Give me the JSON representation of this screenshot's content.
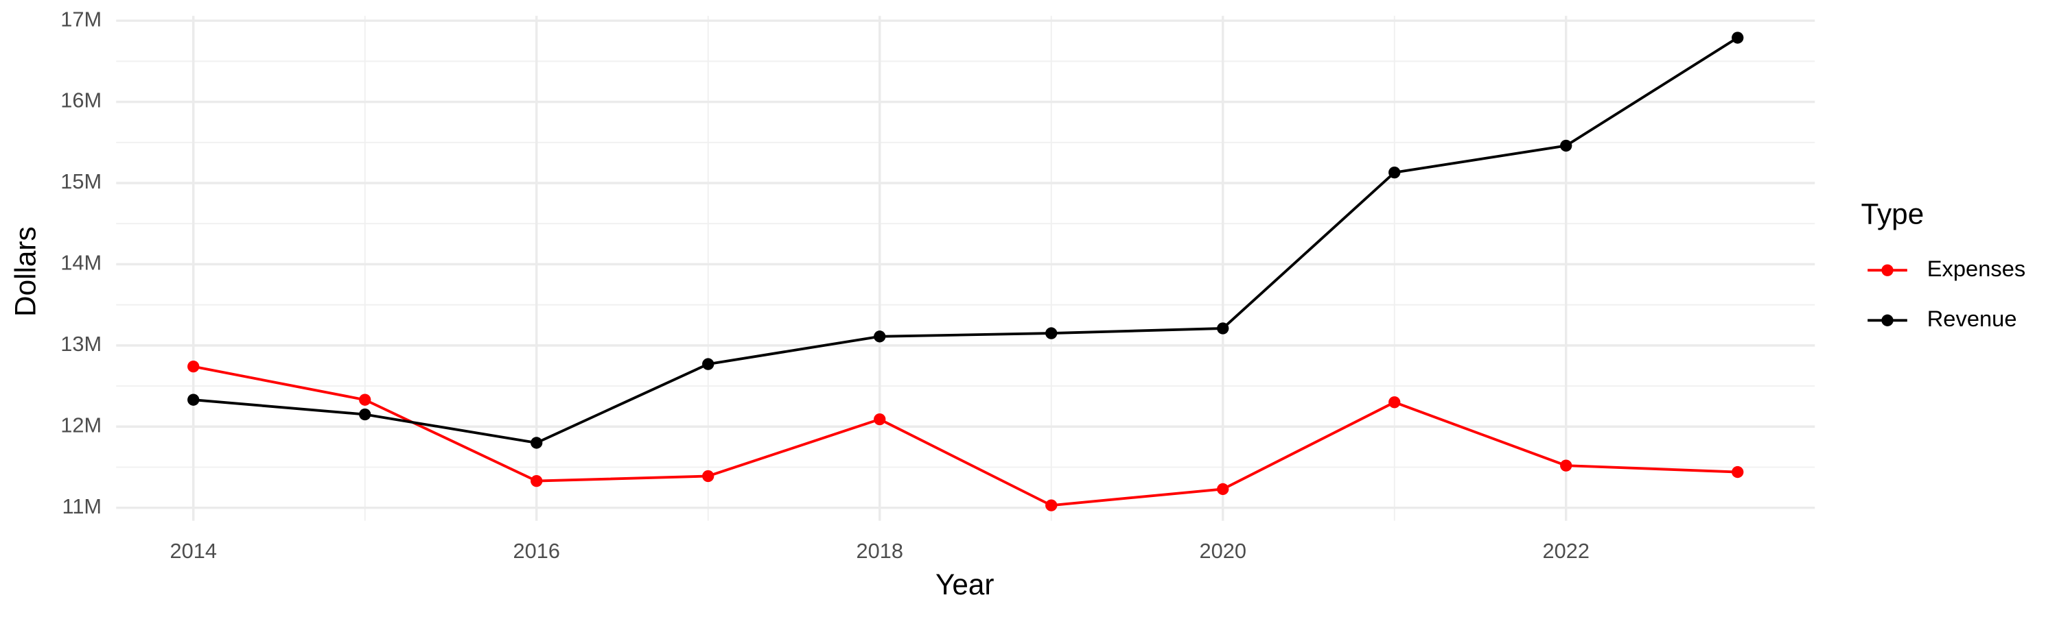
{
  "chart_data": {
    "type": "line",
    "x_label": "Year",
    "y_label": "Dollars",
    "legend_title": "Type",
    "legend_position": "right",
    "grid": true,
    "x": [
      2014,
      2015,
      2016,
      2017,
      2018,
      2019,
      2020,
      2021,
      2022,
      2023
    ],
    "series": [
      {
        "name": "Expenses",
        "color": "#ff0000",
        "values": [
          12740000,
          12330000,
          11330000,
          11390000,
          12090000,
          11030000,
          11230000,
          12300000,
          11520000,
          11440000
        ]
      },
      {
        "name": "Revenue",
        "color": "#000000",
        "values": [
          12330000,
          12150000,
          11800000,
          12770000,
          13110000,
          13150000,
          13210000,
          15130000,
          15460000,
          16790000
        ]
      }
    ],
    "xlim": [
      2013.55,
      2023.45
    ],
    "xticks": [
      2014,
      2016,
      2018,
      2020,
      2022
    ],
    "ylim": [
      10840000,
      17060000
    ],
    "yticks": [
      {
        "value": 11000000,
        "label": "11M"
      },
      {
        "value": 12000000,
        "label": "12M"
      },
      {
        "value": 13000000,
        "label": "13M"
      },
      {
        "value": 14000000,
        "label": "14M"
      },
      {
        "value": 15000000,
        "label": "15M"
      },
      {
        "value": 16000000,
        "label": "16M"
      },
      {
        "value": 17000000,
        "label": "17M"
      }
    ]
  }
}
